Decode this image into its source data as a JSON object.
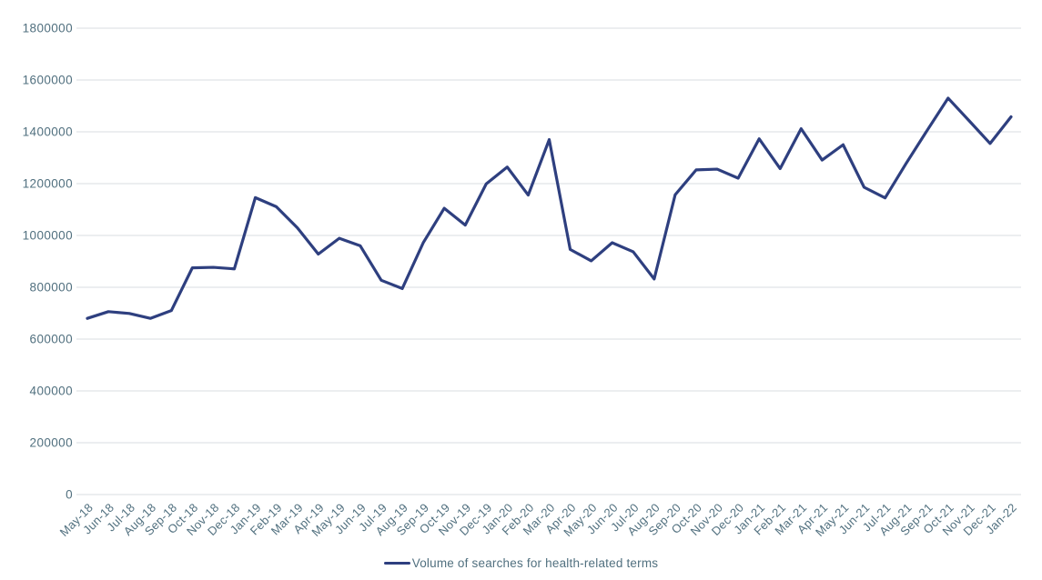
{
  "chart_data": {
    "type": "line",
    "title": "",
    "xlabel": "",
    "ylabel": "",
    "ylim": [
      0,
      1800000
    ],
    "y_ticks": [
      0,
      200000,
      400000,
      600000,
      800000,
      1000000,
      1200000,
      1400000,
      1600000,
      1800000
    ],
    "grid": "horizontal-only",
    "legend_position": "bottom-center",
    "x": [
      "May-18",
      "Jun-18",
      "Jul-18",
      "Aug-18",
      "Sep-18",
      "Oct-18",
      "Nov-18",
      "Dec-18",
      "Jan-19",
      "Feb-19",
      "Mar-19",
      "Apr-19",
      "May-19",
      "Jun-19",
      "Jul-19",
      "Aug-19",
      "Sep-19",
      "Oct-19",
      "Nov-19",
      "Dec-19",
      "Jan-20",
      "Feb-20",
      "Mar-20",
      "Apr-20",
      "May-20",
      "Jun-20",
      "Jul-20",
      "Aug-20",
      "Sep-20",
      "Oct-20",
      "Nov-20",
      "Dec-20",
      "Jan-21",
      "Feb-21",
      "Mar-21",
      "Apr-21",
      "May-21",
      "Jun-21",
      "Jul-21",
      "Aug-21",
      "Sep-21",
      "Oct-21",
      "Nov-21",
      "Dec-21",
      "Jan-22"
    ],
    "series": [
      {
        "name": "Volume of searches for health-related terms",
        "color": "#2e3f7f",
        "values": [
          680000,
          706000,
          699000,
          680000,
          710000,
          875000,
          877000,
          871000,
          1146000,
          1111000,
          1030000,
          928000,
          989000,
          960000,
          827000,
          795000,
          972000,
          1105000,
          1040000,
          1199000,
          1264000,
          1156000,
          1370000,
          946000,
          902000,
          972000,
          937000,
          832000,
          1157000,
          1253000,
          1256000,
          1221000,
          1373000,
          1258000,
          1412000,
          1291000,
          1350000,
          1186000,
          1145000,
          1278000,
          1405000,
          1530000,
          1443000,
          1355000,
          1458000
        ]
      }
    ]
  },
  "legend": {
    "label": "Volume of searches for health-related terms"
  },
  "colors": {
    "line": "#2e3f7f",
    "axis_label": "#51707f",
    "gridline": "#d9dde1",
    "background": "#ffffff"
  }
}
